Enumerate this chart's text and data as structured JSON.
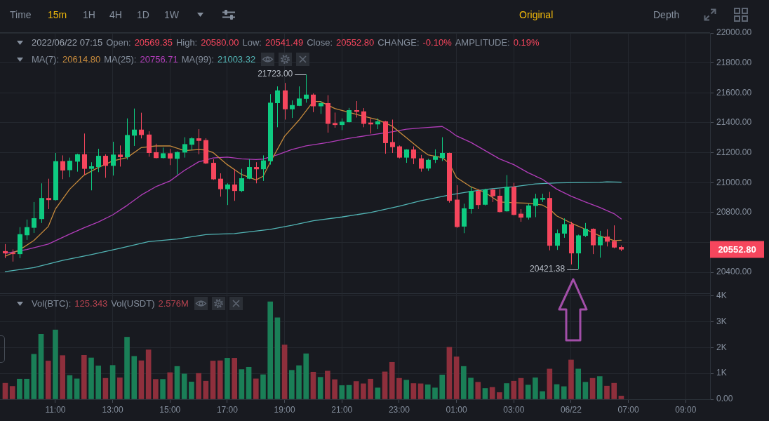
{
  "chart_data": [
    {
      "type": "candlestick",
      "x": [
        "2022-06-21T09:15",
        "2022-06-21T09:30",
        "2022-06-21T09:45",
        "2022-06-21T10:00",
        "2022-06-21T10:15",
        "2022-06-21T10:30",
        "2022-06-21T10:45",
        "2022-06-21T11:00",
        "2022-06-21T11:15",
        "2022-06-21T11:30",
        "2022-06-21T11:45",
        "2022-06-21T12:00",
        "2022-06-21T12:15",
        "2022-06-21T12:30",
        "2022-06-21T12:45",
        "2022-06-21T13:00",
        "2022-06-21T13:15",
        "2022-06-21T13:30",
        "2022-06-21T13:45",
        "2022-06-21T14:00",
        "2022-06-21T14:15",
        "2022-06-21T14:30",
        "2022-06-21T14:45",
        "2022-06-21T15:00",
        "2022-06-21T15:15",
        "2022-06-21T15:30",
        "2022-06-21T15:45",
        "2022-06-21T16:00",
        "2022-06-21T16:15",
        "2022-06-21T16:30",
        "2022-06-21T16:45",
        "2022-06-21T17:00",
        "2022-06-21T17:15",
        "2022-06-21T17:30",
        "2022-06-21T17:45",
        "2022-06-21T18:00",
        "2022-06-21T18:15",
        "2022-06-21T18:30",
        "2022-06-21T18:45",
        "2022-06-21T19:00",
        "2022-06-21T19:15",
        "2022-06-21T19:30",
        "2022-06-21T19:45",
        "2022-06-21T20:00",
        "2022-06-21T20:15",
        "2022-06-21T20:30",
        "2022-06-21T20:45",
        "2022-06-21T21:00",
        "2022-06-21T21:15",
        "2022-06-21T21:30",
        "2022-06-21T21:45",
        "2022-06-21T22:00",
        "2022-06-21T22:15",
        "2022-06-21T22:30",
        "2022-06-21T22:45",
        "2022-06-21T23:00",
        "2022-06-21T23:15",
        "2022-06-21T23:30",
        "2022-06-21T23:45",
        "2022-06-22T00:00",
        "2022-06-22T00:15",
        "2022-06-22T00:30",
        "2022-06-22T00:45",
        "2022-06-22T01:00",
        "2022-06-22T01:15",
        "2022-06-22T01:30",
        "2022-06-22T01:45",
        "2022-06-22T02:00",
        "2022-06-22T02:15",
        "2022-06-22T02:30",
        "2022-06-22T02:45",
        "2022-06-22T03:00",
        "2022-06-22T03:15",
        "2022-06-22T03:30",
        "2022-06-22T03:45",
        "2022-06-22T04:00",
        "2022-06-22T04:15",
        "2022-06-22T04:30",
        "2022-06-22T04:45",
        "2022-06-22T05:00",
        "2022-06-22T05:15",
        "2022-06-22T05:30",
        "2022-06-22T05:45",
        "2022-06-22T06:00",
        "2022-06-22T06:15",
        "2022-06-22T06:30",
        "2022-06-22T06:45"
      ],
      "ohlc": [
        [
          20542,
          20589,
          20495,
          20527
        ],
        [
          20530,
          20553,
          20472,
          20522
        ],
        [
          20522,
          20702,
          20495,
          20655
        ],
        [
          20648,
          20753,
          20617,
          20702
        ],
        [
          20698,
          20870,
          20663,
          20762
        ],
        [
          20756,
          20995,
          20730,
          20897
        ],
        [
          20897,
          21026,
          20823,
          20883
        ],
        [
          20883,
          21198,
          20880,
          21143
        ],
        [
          21143,
          21182,
          21023,
          21081
        ],
        [
          21083,
          21167,
          21037,
          21146
        ],
        [
          21140,
          21193,
          21073,
          21189
        ],
        [
          21189,
          21328,
          21050,
          21092
        ],
        [
          21092,
          21136,
          20948,
          21109
        ],
        [
          21104,
          21226,
          21070,
          21179
        ],
        [
          21179,
          21189,
          21032,
          21112
        ],
        [
          21112,
          21273,
          21047,
          21187
        ],
        [
          21187,
          21248,
          21107,
          21170
        ],
        [
          21170,
          21429,
          21154,
          21318
        ],
        [
          21314,
          21495,
          21245,
          21354
        ],
        [
          21354,
          21467,
          21295,
          21318
        ],
        [
          21321,
          21343,
          21173,
          21198
        ],
        [
          21203,
          21260,
          21162,
          21164
        ],
        [
          21164,
          21234,
          21162,
          21196
        ],
        [
          21196,
          21225,
          21117,
          21161
        ],
        [
          21159,
          21209,
          21054,
          21204
        ],
        [
          21201,
          21303,
          21167,
          21257
        ],
        [
          21253,
          21303,
          21217,
          21296
        ],
        [
          21296,
          21357,
          21189,
          21279
        ],
        [
          21284,
          21296,
          21123,
          21128
        ],
        [
          21132,
          21156,
          21018,
          21022
        ],
        [
          21026,
          21062,
          20906,
          20956
        ],
        [
          20956,
          20995,
          20850,
          20987
        ],
        [
          20987,
          21089,
          20878,
          20944
        ],
        [
          20944,
          21092,
          20936,
          21029
        ],
        [
          21026,
          21156,
          21023,
          21104
        ],
        [
          21104,
          21136,
          20995,
          21089
        ],
        [
          21089,
          21182,
          21011,
          21148
        ],
        [
          21143,
          21591,
          21120,
          21534
        ],
        [
          21531,
          21643,
          21370,
          21616
        ],
        [
          21616,
          21666,
          21421,
          21490
        ],
        [
          21490,
          21549,
          21432,
          21518
        ],
        [
          21513,
          21643,
          21511,
          21562
        ],
        [
          21560,
          21723,
          21534,
          21588
        ],
        [
          21588,
          21596,
          21471,
          21510
        ],
        [
          21510,
          21545,
          21459,
          21531
        ],
        [
          21531,
          21584,
          21334,
          21393
        ],
        [
          21398,
          21468,
          21367,
          21385
        ],
        [
          21385,
          21429,
          21351,
          21407
        ],
        [
          21404,
          21499,
          21402,
          21484
        ],
        [
          21484,
          21545,
          21435,
          21473
        ],
        [
          21476,
          21498,
          21370,
          21393
        ],
        [
          21401,
          21429,
          21328,
          21389
        ],
        [
          21389,
          21429,
          21357,
          21409
        ],
        [
          21409,
          21412,
          21193,
          21264
        ],
        [
          21271,
          21421,
          21198,
          21237
        ],
        [
          21242,
          21248,
          21162,
          21167
        ],
        [
          21167,
          21223,
          21132,
          21221
        ],
        [
          21221,
          21242,
          21123,
          21162
        ],
        [
          21162,
          21185,
          21073,
          21093
        ],
        [
          21094,
          21159,
          21078,
          21152
        ],
        [
          21152,
          21222,
          21131,
          21175
        ],
        [
          21164,
          21303,
          21144,
          21198
        ],
        [
          21198,
          21200,
          20866,
          20878
        ],
        [
          20886,
          20983,
          20698,
          20703
        ],
        [
          20706,
          20859,
          20662,
          20828
        ],
        [
          20823,
          20972,
          20792,
          20944
        ],
        [
          20944,
          20956,
          20823,
          20850
        ],
        [
          20852,
          20959,
          20847,
          20953
        ],
        [
          20953,
          20959,
          20870,
          20909
        ],
        [
          20912,
          20956,
          20800,
          20803
        ],
        [
          20808,
          21050,
          20806,
          20972
        ],
        [
          20972,
          20998,
          20781,
          20784
        ],
        [
          20792,
          20823,
          20738,
          20766
        ],
        [
          20766,
          20858,
          20753,
          20847
        ],
        [
          20844,
          20925,
          20769,
          20894
        ],
        [
          20886,
          20925,
          20870,
          20897
        ],
        [
          20897,
          20938,
          20547,
          20578
        ],
        [
          20578,
          20686,
          20550,
          20662
        ],
        [
          20659,
          20761,
          20631,
          20722
        ],
        [
          20722,
          20738,
          20453,
          20527
        ],
        [
          20527,
          20652,
          20421.38,
          20647
        ],
        [
          20644,
          20730,
          20636,
          20691
        ],
        [
          20691,
          20694,
          20522,
          20581
        ],
        [
          20581,
          20678,
          20498,
          20639
        ],
        [
          20639,
          20688,
          20573,
          20605
        ],
        [
          20609,
          20714,
          20561,
          20566
        ],
        [
          20569.35,
          20580.0,
          20541.49,
          20552.8
        ]
      ],
      "colors": [
        "#f6465d",
        "#f6465d",
        "#0ecb81",
        "#0ecb81",
        "#0ecb81",
        "#0ecb81",
        "#f6465d",
        "#0ecb81",
        "#f6465d",
        "#0ecb81",
        "#0ecb81",
        "#f6465d",
        "#0ecb81",
        "#0ecb81",
        "#f6465d",
        "#0ecb81",
        "#f6465d",
        "#0ecb81",
        "#0ecb81",
        "#f6465d",
        "#f6465d",
        "#f6465d",
        "#0ecb81",
        "#f6465d",
        "#0ecb81",
        "#0ecb81",
        "#0ecb81",
        "#f6465d",
        "#f6465d",
        "#f6465d",
        "#f6465d",
        "#0ecb81",
        "#f6465d",
        "#0ecb81",
        "#0ecb81",
        "#f6465d",
        "#0ecb81",
        "#0ecb81",
        "#0ecb81",
        "#f6465d",
        "#0ecb81",
        "#0ecb81",
        "#0ecb81",
        "#f6465d",
        "#0ecb81",
        "#f6465d",
        "#f6465d",
        "#0ecb81",
        "#0ecb81",
        "#f6465d",
        "#f6465d",
        "#f6465d",
        "#0ecb81",
        "#f6465d",
        "#f6465d",
        "#f6465d",
        "#0ecb81",
        "#f6465d",
        "#f6465d",
        "#0ecb81",
        "#0ecb81",
        "#0ecb81",
        "#f6465d",
        "#f6465d",
        "#0ecb81",
        "#0ecb81",
        "#f6465d",
        "#0ecb81",
        "#f6465d",
        "#f6465d",
        "#0ecb81",
        "#f6465d",
        "#f6465d",
        "#0ecb81",
        "#0ecb81",
        "#0ecb81",
        "#f6465d",
        "#0ecb81",
        "#0ecb81",
        "#f6465d",
        "#0ecb81",
        "#0ecb81",
        "#f6465d",
        "#0ecb81",
        "#f6465d",
        "#f6465d",
        "#f6465d"
      ],
      "series": [
        {
          "type": "line",
          "color": "#c68a3c",
          "x": [
            "2022-06-21T09:15",
            "2022-06-21T09:45",
            "2022-06-21T10:15",
            "2022-06-21T10:45",
            "2022-06-21T11:00",
            "2022-06-21T11:30",
            "2022-06-21T12:00",
            "2022-06-21T12:30",
            "2022-06-21T13:00",
            "2022-06-21T13:30",
            "2022-06-21T14:00",
            "2022-06-21T14:30",
            "2022-06-21T15:00",
            "2022-06-21T15:30",
            "2022-06-21T16:00",
            "2022-06-21T16:15",
            "2022-06-21T16:30",
            "2022-06-21T17:00",
            "2022-06-21T17:30",
            "2022-06-21T18:00",
            "2022-06-21T18:15",
            "2022-06-21T18:30",
            "2022-06-21T19:00",
            "2022-06-21T19:30",
            "2022-06-21T20:00",
            "2022-06-21T20:15",
            "2022-06-21T20:45",
            "2022-06-21T21:30",
            "2022-06-21T22:15",
            "2022-06-21T22:45",
            "2022-06-21T23:15",
            "2022-06-21T23:45",
            "2022-06-22T00:00",
            "2022-06-22T00:30",
            "2022-06-22T00:45",
            "2022-06-22T01:00",
            "2022-06-22T01:30",
            "2022-06-22T02:00",
            "2022-06-22T02:30",
            "2022-06-22T03:00",
            "2022-06-22T03:30",
            "2022-06-22T04:00",
            "2022-06-22T04:15",
            "2022-06-22T04:30",
            "2022-06-22T05:00",
            "2022-06-22T05:30",
            "2022-06-22T06:00",
            "2022-06-22T06:30",
            "2022-06-22T06:45"
          ],
          "values": [
            20508,
            20550,
            20613,
            20706,
            20823,
            20956,
            21050,
            21101,
            21145,
            21167,
            21234,
            21245,
            21245,
            21214,
            21221,
            21218,
            21201,
            21120,
            21054,
            21018,
            21042,
            21136,
            21310,
            21417,
            21542,
            21542,
            21495,
            21456,
            21420,
            21378,
            21300,
            21221,
            21186,
            21167,
            21128,
            21034,
            20972,
            20933,
            20870,
            20866,
            20862,
            20850,
            20823,
            20777,
            20730,
            20688,
            20644,
            20612,
            20615
          ]
        },
        {
          "type": "line",
          "color": "#b23dba",
          "x": [
            "2022-06-21T09:15",
            "2022-06-21T10:00",
            "2022-06-21T10:45",
            "2022-06-21T11:30",
            "2022-06-21T12:00",
            "2022-06-21T12:30",
            "2022-06-21T13:00",
            "2022-06-21T13:30",
            "2022-06-21T14:00",
            "2022-06-21T14:30",
            "2022-06-21T15:00",
            "2022-06-21T15:30",
            "2022-06-21T16:00",
            "2022-06-21T16:15",
            "2022-06-21T16:30",
            "2022-06-21T17:00",
            "2022-06-21T17:30",
            "2022-06-21T18:00",
            "2022-06-21T18:15",
            "2022-06-21T18:45",
            "2022-06-21T19:15",
            "2022-06-21T19:45",
            "2022-06-21T20:30",
            "2022-06-21T21:15",
            "2022-06-21T22:00",
            "2022-06-21T22:45",
            "2022-06-21T23:15",
            "2022-06-21T23:45",
            "2022-06-22T00:00",
            "2022-06-22T00:30",
            "2022-06-22T00:45",
            "2022-06-22T01:00",
            "2022-06-22T01:30",
            "2022-06-22T02:00",
            "2022-06-22T02:30",
            "2022-06-22T03:00",
            "2022-06-22T03:30",
            "2022-06-22T04:00",
            "2022-06-22T04:30",
            "2022-06-22T05:00",
            "2022-06-22T05:30",
            "2022-06-22T06:00",
            "2022-06-22T06:30",
            "2022-06-22T06:45"
          ],
          "values": [
            20527,
            20553,
            20589,
            20656,
            20698,
            20737,
            20784,
            20847,
            20917,
            20972,
            21011,
            21081,
            21139,
            21151,
            21165,
            21170,
            21159,
            21154,
            21157,
            21186,
            21221,
            21245,
            21268,
            21296,
            21318,
            21339,
            21357,
            21365,
            21369,
            21375,
            21347,
            21312,
            21269,
            21214,
            21159,
            21120,
            21066,
            21022,
            20956,
            20909,
            20870,
            20834,
            20792,
            20757
          ]
        },
        {
          "type": "line",
          "color": "#52b5b5",
          "x": [
            "2022-06-21T09:15",
            "2022-06-21T10:15",
            "2022-06-21T11:15",
            "2022-06-21T12:15",
            "2022-06-21T13:15",
            "2022-06-21T14:15",
            "2022-06-21T15:15",
            "2022-06-21T16:15",
            "2022-06-21T16:30",
            "2022-06-21T17:15",
            "2022-06-21T18:30",
            "2022-06-21T19:15",
            "2022-06-21T20:00",
            "2022-06-21T21:00",
            "2022-06-21T22:00",
            "2022-06-21T23:00",
            "2022-06-21T23:45",
            "2022-06-22T00:15",
            "2022-06-22T00:45",
            "2022-06-22T01:30",
            "2022-06-22T02:15",
            "2022-06-22T03:00",
            "2022-06-22T03:45",
            "2022-06-22T04:30",
            "2022-06-22T05:15",
            "2022-06-22T06:00",
            "2022-06-22T06:15",
            "2022-06-22T06:45"
          ],
          "values": [
            20405,
            20432,
            20480,
            20519,
            20561,
            20605,
            20623,
            20652,
            20655,
            20659,
            20687,
            20714,
            20745,
            20770,
            20800,
            20842,
            20878,
            20897,
            20917,
            20941,
            20959,
            20972,
            20991,
            20998,
            21000,
            21002,
            21005,
            21003
          ]
        }
      ],
      "xlim": [
        "2022-06-21T09:04",
        "2022-06-22T09:51"
      ],
      "xticks": [
        {
          "value": "2022-06-21T11:00",
          "label": null
        },
        {
          "value": "2022-06-21T13:00",
          "label": null
        },
        {
          "value": "2022-06-21T15:00",
          "label": null
        },
        {
          "value": "2022-06-21T17:00",
          "label": null
        },
        {
          "value": "2022-06-21T19:00",
          "label": null
        },
        {
          "value": "2022-06-21T21:00",
          "label": null
        },
        {
          "value": "2022-06-21T23:00",
          "label": null
        },
        {
          "value": "2022-06-22T01:00",
          "label": null
        },
        {
          "value": "2022-06-22T03:00",
          "label": null
        },
        {
          "value": "2022-06-22T05:00",
          "label": null
        },
        {
          "value": "2022-06-22T07:00",
          "label": null
        },
        {
          "value": "2022-06-22T09:00",
          "label": null
        }
      ],
      "ylim": [
        20260,
        22000
      ],
      "yticks": [
        {
          "value": 20400,
          "label": "20400.00"
        },
        {
          "value": 20600,
          "label": null
        },
        {
          "value": 20800,
          "label": "20800.00"
        },
        {
          "value": 21000,
          "label": "21000.00"
        },
        {
          "value": 21200,
          "label": "21200.00"
        },
        {
          "value": 21400,
          "label": "21400.00"
        },
        {
          "value": 21600,
          "label": "21600.00"
        },
        {
          "value": 21800,
          "label": "21800.00"
        },
        {
          "value": 22000,
          "label": "22000.00"
        }
      ],
      "grid": true,
      "tick_labels": "y",
      "annotations": [
        "Time",
        "15m",
        "1H",
        "4H",
        "1D",
        "1W",
        "Original",
        "Depth",
        "2022/06/22 07:15",
        "Open:",
        "20569.35",
        "High:",
        "20580.00",
        "Low:",
        "20541.49",
        "Close:",
        "20552.80",
        "CHANGE:",
        "-0.10%",
        "AMPLITUDE:",
        "0.19%",
        "MA(7):",
        "20614.80",
        "MA(25):",
        "20756.71",
        "MA(99):",
        "21003.32",
        "20552.80",
        {
          "text": "21723.00",
          "x": "2022-06-21T19:45",
          "y": 21723
        },
        {
          "text": "20421.38",
          "x": "2022-06-22T05:15",
          "y": 20421.38
        }
      ]
    },
    {
      "type": "bar",
      "x": [
        "2022-06-21T09:15",
        "2022-06-21T09:30",
        "2022-06-21T09:45",
        "2022-06-21T10:00",
        "2022-06-21T10:15",
        "2022-06-21T10:30",
        "2022-06-21T10:45",
        "2022-06-21T11:00",
        "2022-06-21T11:15",
        "2022-06-21T11:30",
        "2022-06-21T11:45",
        "2022-06-21T12:00",
        "2022-06-21T12:15",
        "2022-06-21T12:30",
        "2022-06-21T12:45",
        "2022-06-21T13:00",
        "2022-06-21T13:15",
        "2022-06-21T13:30",
        "2022-06-21T13:45",
        "2022-06-21T14:00",
        "2022-06-21T14:15",
        "2022-06-21T14:30",
        "2022-06-21T14:45",
        "2022-06-21T15:00",
        "2022-06-21T15:15",
        "2022-06-21T15:30",
        "2022-06-21T15:45",
        "2022-06-21T16:00",
        "2022-06-21T16:15",
        "2022-06-21T16:30",
        "2022-06-21T16:45",
        "2022-06-21T17:00",
        "2022-06-21T17:15",
        "2022-06-21T17:30",
        "2022-06-21T17:45",
        "2022-06-21T18:00",
        "2022-06-21T18:15",
        "2022-06-21T18:30",
        "2022-06-21T18:45",
        "2022-06-21T19:00",
        "2022-06-21T19:15",
        "2022-06-21T19:30",
        "2022-06-21T19:45",
        "2022-06-21T20:00",
        "2022-06-21T20:15",
        "2022-06-21T20:30",
        "2022-06-21T20:45",
        "2022-06-21T21:00",
        "2022-06-21T21:15",
        "2022-06-21T21:30",
        "2022-06-21T21:45",
        "2022-06-21T22:00",
        "2022-06-21T22:15",
        "2022-06-21T22:30",
        "2022-06-21T22:45",
        "2022-06-21T23:00",
        "2022-06-21T23:15",
        "2022-06-21T23:30",
        "2022-06-21T23:45",
        "2022-06-22T00:00",
        "2022-06-22T00:15",
        "2022-06-22T00:30",
        "2022-06-22T00:45",
        "2022-06-22T01:00",
        "2022-06-22T01:15",
        "2022-06-22T01:30",
        "2022-06-22T01:45",
        "2022-06-22T02:00",
        "2022-06-22T02:15",
        "2022-06-22T02:30",
        "2022-06-22T02:45",
        "2022-06-22T03:00",
        "2022-06-22T03:15",
        "2022-06-22T03:30",
        "2022-06-22T03:45",
        "2022-06-22T04:00",
        "2022-06-22T04:15",
        "2022-06-22T04:30",
        "2022-06-22T04:45",
        "2022-06-22T05:00",
        "2022-06-22T05:15",
        "2022-06-22T05:30",
        "2022-06-22T05:45",
        "2022-06-22T06:00",
        "2022-06-22T06:15",
        "2022-06-22T06:30",
        "2022-06-22T06:45"
      ],
      "values": [
        620,
        500,
        780,
        780,
        1740,
        2510,
        1480,
        2680,
        1690,
        920,
        790,
        1700,
        1600,
        1290,
        810,
        1310,
        830,
        2400,
        1660,
        1490,
        1910,
        770,
        770,
        1030,
        1270,
        980,
        670,
        1000,
        700,
        1480,
        1490,
        1590,
        1590,
        1150,
        1240,
        790,
        950,
        3770,
        3150,
        2100,
        1120,
        1300,
        1760,
        1050,
        850,
        1090,
        760,
        530,
        540,
        690,
        600,
        780,
        440,
        1060,
        1430,
        810,
        740,
        610,
        600,
        560,
        440,
        940,
        2010,
        1640,
        1270,
        820,
        660,
        420,
        460,
        260,
        610,
        700,
        810,
        550,
        830,
        300,
        1170,
        570,
        490,
        1520,
        1170,
        660,
        810,
        880,
        510,
        620,
        125
      ],
      "colors": [
        "#8e2f3c",
        "#8e2f3c",
        "#1a7f57",
        "#1a7f57",
        "#1a7f57",
        "#1a7f57",
        "#8e2f3c",
        "#1a7f57",
        "#8e2f3c",
        "#1a7f57",
        "#1a7f57",
        "#8e2f3c",
        "#1a7f57",
        "#1a7f57",
        "#8e2f3c",
        "#1a7f57",
        "#8e2f3c",
        "#1a7f57",
        "#1a7f57",
        "#8e2f3c",
        "#8e2f3c",
        "#8e2f3c",
        "#1a7f57",
        "#8e2f3c",
        "#1a7f57",
        "#1a7f57",
        "#1a7f57",
        "#8e2f3c",
        "#8e2f3c",
        "#8e2f3c",
        "#8e2f3c",
        "#1a7f57",
        "#8e2f3c",
        "#1a7f57",
        "#1a7f57",
        "#8e2f3c",
        "#1a7f57",
        "#1a7f57",
        "#1a7f57",
        "#8e2f3c",
        "#1a7f57",
        "#1a7f57",
        "#1a7f57",
        "#8e2f3c",
        "#1a7f57",
        "#8e2f3c",
        "#8e2f3c",
        "#1a7f57",
        "#1a7f57",
        "#8e2f3c",
        "#8e2f3c",
        "#8e2f3c",
        "#1a7f57",
        "#8e2f3c",
        "#8e2f3c",
        "#8e2f3c",
        "#1a7f57",
        "#8e2f3c",
        "#8e2f3c",
        "#1a7f57",
        "#1a7f57",
        "#1a7f57",
        "#8e2f3c",
        "#8e2f3c",
        "#1a7f57",
        "#1a7f57",
        "#8e2f3c",
        "#1a7f57",
        "#8e2f3c",
        "#8e2f3c",
        "#1a7f57",
        "#8e2f3c",
        "#8e2f3c",
        "#1a7f57",
        "#1a7f57",
        "#1a7f57",
        "#8e2f3c",
        "#1a7f57",
        "#1a7f57",
        "#8e2f3c",
        "#1a7f57",
        "#1a7f57",
        "#8e2f3c",
        "#1a7f57",
        "#8e2f3c",
        "#8e2f3c",
        "#8e2f3c"
      ],
      "xlim": [
        "2022-06-21T09:04",
        "2022-06-22T09:51"
      ],
      "xticks": [
        {
          "value": "2022-06-21T11:00",
          "label": "11:00"
        },
        {
          "value": "2022-06-21T13:00",
          "label": "13:00"
        },
        {
          "value": "2022-06-21T15:00",
          "label": "15:00"
        },
        {
          "value": "2022-06-21T17:00",
          "label": "17:00"
        },
        {
          "value": "2022-06-21T19:00",
          "label": "19:00"
        },
        {
          "value": "2022-06-21T21:00",
          "label": "21:00"
        },
        {
          "value": "2022-06-21T23:00",
          "label": "23:00"
        },
        {
          "value": "2022-06-22T01:00",
          "label": "01:00"
        },
        {
          "value": "2022-06-22T03:00",
          "label": "03:00"
        },
        {
          "value": "2022-06-22T05:00",
          "label": "06/22"
        },
        {
          "value": "2022-06-22T07:00",
          "label": "07:00"
        },
        {
          "value": "2022-06-22T09:00",
          "label": "09:00"
        }
      ],
      "ylim": [
        0,
        4095
      ],
      "yticks": [
        {
          "value": 0,
          "label": "0.00"
        },
        {
          "value": 1000,
          "label": "1K"
        },
        {
          "value": 2000,
          "label": "2K"
        },
        {
          "value": 3000,
          "label": "3K"
        },
        {
          "value": 4000,
          "label": "4K"
        }
      ],
      "grid": true,
      "annotations": [
        "Vol(BTC):",
        "125.343",
        "Vol(USDT)",
        "2.576M"
      ]
    }
  ]
}
